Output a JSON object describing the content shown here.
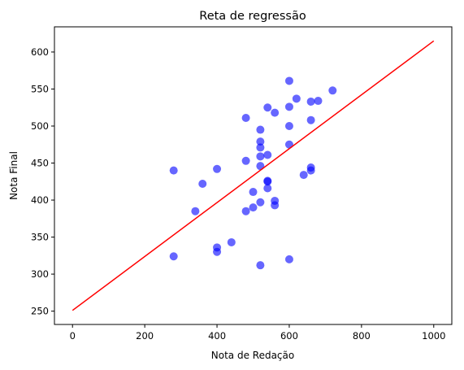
{
  "chart_data": {
    "type": "scatter",
    "title": "Reta de regressão",
    "xlabel": "Nota de Redação",
    "ylabel": "Nota Final",
    "xlim": [
      -50,
      1050
    ],
    "ylim": [
      232,
      634
    ],
    "xticks": [
      0,
      200,
      400,
      600,
      800,
      1000
    ],
    "yticks": [
      250,
      300,
      350,
      400,
      450,
      500,
      550,
      600
    ],
    "grid": false,
    "colors": {
      "points": "#0000ff",
      "line": "#ff0000",
      "axis": "#000000"
    },
    "point_opacity": 0.6,
    "points": [
      [
        280,
        440
      ],
      [
        280,
        324
      ],
      [
        340,
        385
      ],
      [
        360,
        422
      ],
      [
        400,
        442
      ],
      [
        400,
        336
      ],
      [
        400,
        330
      ],
      [
        440,
        343
      ],
      [
        480,
        511
      ],
      [
        480,
        453
      ],
      [
        480,
        385
      ],
      [
        500,
        411
      ],
      [
        500,
        390
      ],
      [
        520,
        495
      ],
      [
        520,
        479
      ],
      [
        520,
        471
      ],
      [
        520,
        459
      ],
      [
        520,
        446
      ],
      [
        520,
        397
      ],
      [
        520,
        312
      ],
      [
        540,
        525
      ],
      [
        540,
        461
      ],
      [
        540,
        426
      ],
      [
        540,
        425
      ],
      [
        540,
        416
      ],
      [
        560,
        518
      ],
      [
        560,
        399
      ],
      [
        560,
        393
      ],
      [
        600,
        561
      ],
      [
        600,
        526
      ],
      [
        600,
        500
      ],
      [
        600,
        475
      ],
      [
        600,
        320
      ],
      [
        620,
        537
      ],
      [
        640,
        434
      ],
      [
        660,
        533
      ],
      [
        660,
        508
      ],
      [
        660,
        444
      ],
      [
        660,
        440
      ],
      [
        680,
        534
      ],
      [
        720,
        548
      ]
    ],
    "regression_line": {
      "x": [
        0,
        1000
      ],
      "y": [
        251,
        615
      ]
    }
  }
}
